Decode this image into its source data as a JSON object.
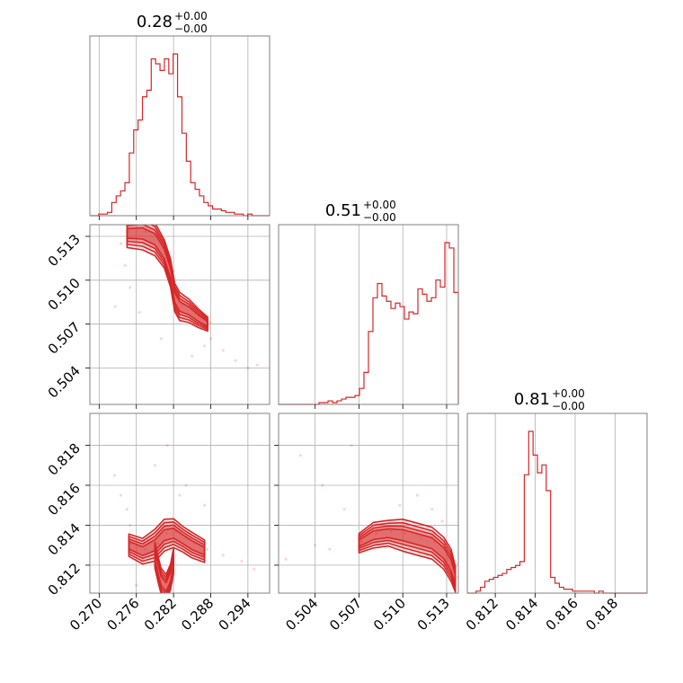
{
  "chart_data": {
    "type": "corner",
    "color": "#d62728",
    "grid": true,
    "params": [
      {
        "title": "0.28",
        "upper": "+0.00",
        "lower": "−0.00",
        "range": [
          0.2685,
          0.2975
        ],
        "ticks": [
          0.27,
          0.276,
          0.282,
          0.288,
          0.294
        ],
        "tick_labels": [
          "0.270",
          "0.276",
          "0.282",
          "0.288",
          "0.294"
        ]
      },
      {
        "title": "0.51",
        "upper": "+0.00",
        "lower": "−0.00",
        "range": [
          0.5015,
          0.5138
        ],
        "ticks": [
          0.504,
          0.507,
          0.51,
          0.513
        ],
        "tick_labels": [
          "0.504",
          "0.507",
          "0.510",
          "0.513"
        ]
      },
      {
        "title": "0.81",
        "upper": "+0.00",
        "lower": "−0.00",
        "range": [
          0.8106,
          0.8196
        ],
        "ticks": [
          0.812,
          0.814,
          0.816,
          0.818
        ],
        "tick_labels": [
          "0.812",
          "0.814",
          "0.816",
          "0.818"
        ]
      }
    ],
    "histograms": [
      [
        0,
        0,
        1,
        1,
        2,
        8,
        12,
        15,
        20,
        38,
        52,
        58,
        72,
        76,
        95,
        92,
        88,
        95,
        86,
        98,
        72,
        50,
        33,
        20,
        16,
        12,
        8,
        6,
        4,
        4,
        3,
        2,
        2,
        1,
        1,
        0,
        1,
        0,
        0,
        0,
        0
      ],
      [
        0,
        0,
        0,
        0,
        0,
        0,
        0,
        0,
        0,
        1,
        1,
        2,
        1,
        2,
        3,
        4,
        4,
        5,
        9,
        18,
        41,
        60,
        68,
        61,
        58,
        54,
        57,
        55,
        48,
        52,
        51,
        65,
        62,
        58,
        60,
        70,
        66,
        91,
        88,
        63
      ],
      [
        0,
        0,
        1,
        3,
        6,
        7,
        8,
        9,
        10,
        12,
        13,
        14,
        16,
        60,
        82,
        70,
        61,
        65,
        52,
        8,
        5,
        3,
        2,
        2,
        1,
        1,
        1,
        1,
        1,
        0,
        1,
        0,
        0,
        0,
        0,
        0,
        0,
        0,
        0,
        0,
        0
      ]
    ],
    "panels": [
      {
        "x": 0,
        "y": 1,
        "ridge": [
          [
            0.2745,
            0.5132
          ],
          [
            0.277,
            0.5132
          ],
          [
            0.279,
            0.5128
          ],
          [
            0.2805,
            0.5118
          ],
          [
            0.2815,
            0.5105
          ],
          [
            0.2822,
            0.5088
          ],
          [
            0.283,
            0.5082
          ],
          [
            0.2845,
            0.5079
          ],
          [
            0.286,
            0.5074
          ],
          [
            0.2875,
            0.507
          ]
        ],
        "widths": [
          0.0006,
          0.0007,
          0.0007,
          0.0006,
          0.0006,
          0.0006,
          0.0006,
          0.0005,
          0.0004,
          0.0003
        ],
        "scatter": [
          [
            0.2735,
            0.5125
          ],
          [
            0.2742,
            0.511
          ],
          [
            0.275,
            0.5095
          ],
          [
            0.2726,
            0.5082
          ],
          [
            0.2765,
            0.5078
          ],
          [
            0.288,
            0.506
          ],
          [
            0.29,
            0.5052
          ],
          [
            0.292,
            0.5045
          ],
          [
            0.294,
            0.504
          ],
          [
            0.287,
            0.5055
          ],
          [
            0.28,
            0.506
          ],
          [
            0.285,
            0.5048
          ],
          [
            0.2955,
            0.5042
          ]
        ]
      },
      {
        "x": 0,
        "y": 2,
        "ridge": [
          [
            0.2748,
            0.813
          ],
          [
            0.277,
            0.8127
          ],
          [
            0.279,
            0.813
          ],
          [
            0.2805,
            0.8135
          ],
          [
            0.282,
            0.8136
          ],
          [
            0.2835,
            0.8133
          ],
          [
            0.285,
            0.813
          ],
          [
            0.287,
            0.8127
          ]
        ],
        "widths": [
          0.00035,
          0.0004,
          0.0005,
          0.0005,
          0.00045,
          0.0004,
          0.0004,
          0.00035
        ],
        "lobe": [
          [
            0.279,
            0.8125
          ],
          [
            0.2795,
            0.8118
          ],
          [
            0.28,
            0.8112
          ],
          [
            0.2808,
            0.8109
          ],
          [
            0.2815,
            0.8114
          ],
          [
            0.282,
            0.8122
          ]
        ],
        "scatter": [
          [
            0.2725,
            0.8165
          ],
          [
            0.2735,
            0.8155
          ],
          [
            0.2745,
            0.8148
          ],
          [
            0.275,
            0.814
          ],
          [
            0.281,
            0.818
          ],
          [
            0.279,
            0.817
          ],
          [
            0.283,
            0.8155
          ],
          [
            0.287,
            0.815
          ],
          [
            0.29,
            0.8125
          ],
          [
            0.293,
            0.8122
          ],
          [
            0.295,
            0.8118
          ],
          [
            0.276,
            0.811
          ],
          [
            0.284,
            0.816
          ]
        ]
      },
      {
        "x": 1,
        "y": 2,
        "ridge": [
          [
            0.507,
            0.8131
          ],
          [
            0.508,
            0.8135
          ],
          [
            0.509,
            0.8136
          ],
          [
            0.51,
            0.8135
          ],
          [
            0.511,
            0.8133
          ],
          [
            0.512,
            0.8131
          ],
          [
            0.5128,
            0.8126
          ],
          [
            0.5133,
            0.812
          ],
          [
            0.5136,
            0.8113
          ]
        ],
        "widths": [
          0.0003,
          0.0004,
          0.0004,
          0.0005,
          0.0005,
          0.0005,
          0.0005,
          0.0005,
          0.0004
        ],
        "scatter": [
          [
            0.503,
            0.8175
          ],
          [
            0.5045,
            0.816
          ],
          [
            0.506,
            0.8148
          ],
          [
            0.504,
            0.813
          ],
          [
            0.505,
            0.8128
          ],
          [
            0.5065,
            0.818
          ],
          [
            0.511,
            0.8155
          ],
          [
            0.512,
            0.8148
          ],
          [
            0.5127,
            0.8142
          ],
          [
            0.502,
            0.8123
          ],
          [
            0.5098,
            0.815
          ]
        ]
      }
    ]
  }
}
